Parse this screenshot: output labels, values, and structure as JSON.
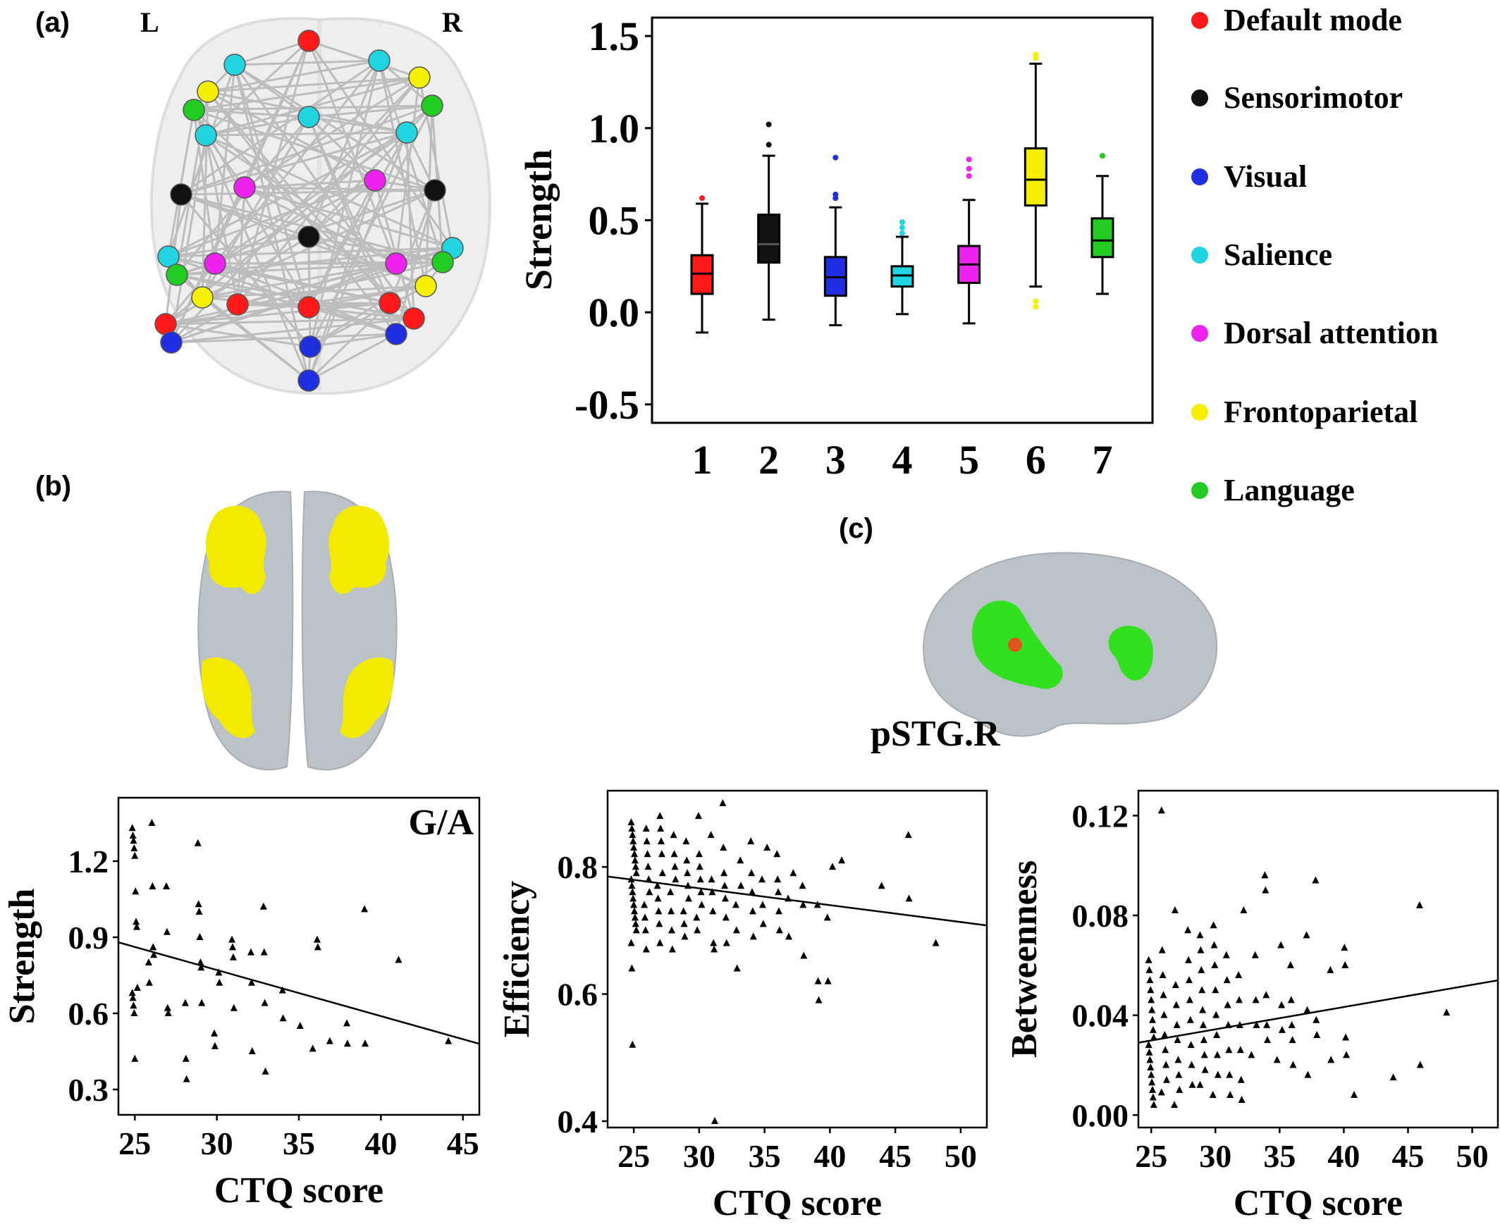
{
  "panels": {
    "a": "(a)",
    "b": "(b)",
    "c": "(c)"
  },
  "brain_a": {
    "left_label": "L",
    "right_label": "R"
  },
  "brain_c": {
    "label": "pSTG.R"
  },
  "colors": {
    "default_mode": "#ff1a1a",
    "sensorimotor": "#111111",
    "visual": "#1f2fe0",
    "salience": "#22d3e0",
    "dorsal_attention": "#ee22ee",
    "frontoparietal": "#f5f000",
    "language": "#22cc22",
    "activation_yellow": "#f2ea00",
    "activation_green": "#33e01f",
    "brain_gray": "#bcc3c8"
  },
  "legend": [
    {
      "label": "Default mode",
      "color": "#ff1a1a"
    },
    {
      "label": "Sensorimotor",
      "color": "#111111"
    },
    {
      "label": "Visual",
      "color": "#1f2fe0"
    },
    {
      "label": "Salience",
      "color": "#22d3e0"
    },
    {
      "label": "Dorsal attention",
      "color": "#ee22ee"
    },
    {
      "label": "Frontoparietal",
      "color": "#f5f000"
    },
    {
      "label": "Language",
      "color": "#22cc22"
    }
  ],
  "chart_data": [
    {
      "type": "box",
      "ylabel": "Strength",
      "categories": [
        "1",
        "2",
        "3",
        "4",
        "5",
        "6",
        "7"
      ],
      "ylim": [
        -0.6,
        1.6
      ],
      "yticks": [
        1.5,
        1.0,
        0.5,
        0.0,
        -0.5
      ],
      "ytick_labels": [
        "1.5",
        "1.0",
        "0.5",
        "0.0",
        "-0.5"
      ],
      "boxes": [
        {
          "category": "1",
          "color": "#ff1a1a",
          "min": -0.11,
          "q1": 0.1,
          "median": 0.21,
          "q3": 0.31,
          "max": 0.59,
          "outliers": [
            0.62
          ]
        },
        {
          "category": "2",
          "color": "#111111",
          "min": -0.04,
          "q1": 0.27,
          "median": 0.37,
          "q3": 0.53,
          "max": 0.85,
          "outliers": [
            0.91,
            1.02
          ]
        },
        {
          "category": "3",
          "color": "#1f2fe0",
          "min": -0.07,
          "q1": 0.09,
          "median": 0.19,
          "q3": 0.3,
          "max": 0.57,
          "outliers": [
            0.62,
            0.64,
            0.84
          ]
        },
        {
          "category": "4",
          "color": "#22d3e0",
          "min": -0.01,
          "q1": 0.14,
          "median": 0.2,
          "q3": 0.25,
          "max": 0.41,
          "outliers": [
            0.43,
            0.46,
            0.49
          ]
        },
        {
          "category": "5",
          "color": "#ee22ee",
          "min": -0.06,
          "q1": 0.16,
          "median": 0.26,
          "q3": 0.36,
          "max": 0.61,
          "outliers": [
            0.74,
            0.78,
            0.83
          ]
        },
        {
          "category": "6",
          "color": "#f5f000",
          "min": 0.14,
          "q1": 0.58,
          "median": 0.72,
          "q3": 0.89,
          "max": 1.35,
          "outliers": [
            0.03,
            0.06,
            1.38,
            1.4
          ]
        },
        {
          "category": "7",
          "color": "#22cc22",
          "min": 0.1,
          "q1": 0.3,
          "median": 0.39,
          "q3": 0.51,
          "max": 0.74,
          "outliers": [
            0.85
          ]
        }
      ]
    },
    {
      "type": "scatter",
      "annotation": "G/A",
      "xlabel": "CTQ score",
      "ylabel": "Strength",
      "xlim": [
        24,
        46
      ],
      "ylim": [
        0.2,
        1.45
      ],
      "xticks": [
        25,
        30,
        35,
        40,
        45
      ],
      "yticks": [
        0.3,
        0.6,
        0.9,
        1.2
      ],
      "ytick_labels": [
        "0.3",
        "0.6",
        "0.9",
        "1.2"
      ],
      "fit_line": {
        "x": [
          24,
          46
        ],
        "y": [
          0.88,
          0.48
        ]
      },
      "points": [
        [
          25,
          1.33
        ],
        [
          25,
          1.3
        ],
        [
          25,
          1.28
        ],
        [
          25,
          1.25
        ],
        [
          25,
          1.22
        ],
        [
          25,
          1.08
        ],
        [
          25,
          0.96
        ],
        [
          25,
          0.94
        ],
        [
          25,
          0.7
        ],
        [
          25,
          0.68
        ],
        [
          25,
          0.66
        ],
        [
          25,
          0.63
        ],
        [
          25,
          0.6
        ],
        [
          25,
          0.42
        ],
        [
          26,
          1.35
        ],
        [
          26,
          1.1
        ],
        [
          26,
          0.86
        ],
        [
          26,
          0.83
        ],
        [
          26,
          0.8
        ],
        [
          26,
          0.72
        ],
        [
          27,
          1.1
        ],
        [
          27,
          0.92
        ],
        [
          27,
          0.62
        ],
        [
          27,
          0.6
        ],
        [
          28,
          0.64
        ],
        [
          28,
          0.42
        ],
        [
          28,
          0.34
        ],
        [
          29,
          1.27
        ],
        [
          29,
          1.03
        ],
        [
          29,
          1.0
        ],
        [
          29,
          0.9
        ],
        [
          29,
          0.8
        ],
        [
          29,
          0.78
        ],
        [
          29,
          0.64
        ],
        [
          30,
          0.76
        ],
        [
          30,
          0.72
        ],
        [
          30,
          0.52
        ],
        [
          30,
          0.47
        ],
        [
          31,
          0.89
        ],
        [
          31,
          0.86
        ],
        [
          31,
          0.82
        ],
        [
          31,
          0.62
        ],
        [
          32,
          0.84
        ],
        [
          32,
          0.72
        ],
        [
          32,
          0.45
        ],
        [
          33,
          1.02
        ],
        [
          33,
          0.84
        ],
        [
          33,
          0.64
        ],
        [
          33,
          0.37
        ],
        [
          34,
          0.69
        ],
        [
          34,
          0.58
        ],
        [
          35,
          0.55
        ],
        [
          36,
          0.89
        ],
        [
          36,
          0.86
        ],
        [
          36,
          0.46
        ],
        [
          37,
          0.49
        ],
        [
          38,
          0.56
        ],
        [
          38,
          0.48
        ],
        [
          39,
          1.01
        ],
        [
          39,
          0.48
        ],
        [
          41,
          0.81
        ],
        [
          44,
          0.49
        ]
      ]
    },
    {
      "type": "scatter",
      "xlabel": "CTQ score",
      "ylabel": "Efficiency",
      "xlim": [
        23,
        52
      ],
      "ylim": [
        0.39,
        0.92
      ],
      "xticks": [
        25,
        30,
        35,
        40,
        45,
        50
      ],
      "yticks": [
        0.4,
        0.6,
        0.8
      ],
      "ytick_labels": [
        "0.4",
        "0.6",
        "0.8"
      ],
      "fit_line": {
        "x": [
          23,
          52
        ],
        "y": [
          0.785,
          0.708
        ]
      },
      "points": [
        [
          25,
          0.87
        ],
        [
          25,
          0.86
        ],
        [
          25,
          0.85
        ],
        [
          25,
          0.84
        ],
        [
          25,
          0.83
        ],
        [
          25,
          0.82
        ],
        [
          25,
          0.81
        ],
        [
          25,
          0.8
        ],
        [
          25,
          0.79
        ],
        [
          25,
          0.78
        ],
        [
          25,
          0.77
        ],
        [
          25,
          0.76
        ],
        [
          25,
          0.75
        ],
        [
          25,
          0.74
        ],
        [
          25,
          0.73
        ],
        [
          25,
          0.72
        ],
        [
          25,
          0.71
        ],
        [
          25,
          0.7
        ],
        [
          25,
          0.68
        ],
        [
          25,
          0.64
        ],
        [
          25,
          0.52
        ],
        [
          26,
          0.86
        ],
        [
          26,
          0.84
        ],
        [
          26,
          0.82
        ],
        [
          26,
          0.8
        ],
        [
          26,
          0.78
        ],
        [
          26,
          0.76
        ],
        [
          26,
          0.74
        ],
        [
          26,
          0.72
        ],
        [
          26,
          0.7
        ],
        [
          26,
          0.67
        ],
        [
          27,
          0.88
        ],
        [
          27,
          0.86
        ],
        [
          27,
          0.84
        ],
        [
          27,
          0.82
        ],
        [
          27,
          0.79
        ],
        [
          27,
          0.77
        ],
        [
          27,
          0.75
        ],
        [
          27,
          0.73
        ],
        [
          27,
          0.71
        ],
        [
          27,
          0.68
        ],
        [
          28,
          0.85
        ],
        [
          28,
          0.82
        ],
        [
          28,
          0.8
        ],
        [
          28,
          0.78
        ],
        [
          28,
          0.76
        ],
        [
          28,
          0.73
        ],
        [
          28,
          0.7
        ],
        [
          28,
          0.67
        ],
        [
          29,
          0.84
        ],
        [
          29,
          0.81
        ],
        [
          29,
          0.79
        ],
        [
          29,
          0.77
        ],
        [
          29,
          0.75
        ],
        [
          29,
          0.73
        ],
        [
          29,
          0.71
        ],
        [
          29,
          0.69
        ],
        [
          30,
          0.88
        ],
        [
          30,
          0.82
        ],
        [
          30,
          0.8
        ],
        [
          30,
          0.78
        ],
        [
          30,
          0.76
        ],
        [
          30,
          0.74
        ],
        [
          30,
          0.72
        ],
        [
          30,
          0.7
        ],
        [
          31,
          0.85
        ],
        [
          31,
          0.78
        ],
        [
          31,
          0.76
        ],
        [
          31,
          0.73
        ],
        [
          31,
          0.68
        ],
        [
          31,
          0.67
        ],
        [
          31,
          0.4
        ],
        [
          32,
          0.9
        ],
        [
          32,
          0.83
        ],
        [
          32,
          0.79
        ],
        [
          32,
          0.77
        ],
        [
          32,
          0.75
        ],
        [
          32,
          0.72
        ],
        [
          32,
          0.68
        ],
        [
          33,
          0.81
        ],
        [
          33,
          0.77
        ],
        [
          33,
          0.74
        ],
        [
          33,
          0.7
        ],
        [
          33,
          0.64
        ],
        [
          34,
          0.84
        ],
        [
          34,
          0.79
        ],
        [
          34,
          0.76
        ],
        [
          34,
          0.73
        ],
        [
          34,
          0.69
        ],
        [
          35,
          0.83
        ],
        [
          35,
          0.78
        ],
        [
          35,
          0.74
        ],
        [
          35,
          0.71
        ],
        [
          36,
          0.82
        ],
        [
          36,
          0.78
        ],
        [
          36,
          0.76
        ],
        [
          36,
          0.73
        ],
        [
          36,
          0.7
        ],
        [
          37,
          0.79
        ],
        [
          37,
          0.75
        ],
        [
          37,
          0.69
        ],
        [
          38,
          0.77
        ],
        [
          38,
          0.74
        ],
        [
          38,
          0.66
        ],
        [
          39,
          0.74
        ],
        [
          39,
          0.62
        ],
        [
          39,
          0.59
        ],
        [
          40,
          0.8
        ],
        [
          40,
          0.72
        ],
        [
          40,
          0.62
        ],
        [
          41,
          0.81
        ],
        [
          44,
          0.77
        ],
        [
          46,
          0.85
        ],
        [
          46,
          0.75
        ],
        [
          48,
          0.68
        ]
      ]
    },
    {
      "type": "scatter",
      "xlabel": "CTQ score",
      "ylabel": "Betweenness",
      "xlim": [
        24,
        52
      ],
      "ylim": [
        -0.005,
        0.13
      ],
      "xticks": [
        25,
        30,
        35,
        40,
        45,
        50
      ],
      "yticks": [
        0.0,
        0.04,
        0.08,
        0.12
      ],
      "ytick_labels": [
        "0.00",
        "0.04",
        "0.08",
        "0.12"
      ],
      "fit_line": {
        "x": [
          24,
          52
        ],
        "y": [
          0.029,
          0.054
        ]
      },
      "points": [
        [
          25,
          0.062
        ],
        [
          25,
          0.058
        ],
        [
          25,
          0.054
        ],
        [
          25,
          0.05
        ],
        [
          25,
          0.046
        ],
        [
          25,
          0.042
        ],
        [
          25,
          0.038
        ],
        [
          25,
          0.034
        ],
        [
          25,
          0.031
        ],
        [
          25,
          0.028
        ],
        [
          25,
          0.025
        ],
        [
          25,
          0.022
        ],
        [
          25,
          0.019
        ],
        [
          25,
          0.016
        ],
        [
          25,
          0.013
        ],
        [
          25,
          0.01
        ],
        [
          25,
          0.007
        ],
        [
          25,
          0.004
        ],
        [
          26,
          0.122
        ],
        [
          26,
          0.066
        ],
        [
          26,
          0.056
        ],
        [
          26,
          0.048
        ],
        [
          26,
          0.04
        ],
        [
          26,
          0.032
        ],
        [
          26,
          0.026
        ],
        [
          26,
          0.02
        ],
        [
          26,
          0.014
        ],
        [
          26,
          0.009
        ],
        [
          27,
          0.082
        ],
        [
          27,
          0.052
        ],
        [
          27,
          0.044
        ],
        [
          27,
          0.036
        ],
        [
          27,
          0.03
        ],
        [
          27,
          0.022
        ],
        [
          27,
          0.016
        ],
        [
          27,
          0.01
        ],
        [
          27,
          0.004
        ],
        [
          28,
          0.074
        ],
        [
          28,
          0.062
        ],
        [
          28,
          0.054
        ],
        [
          28,
          0.046
        ],
        [
          28,
          0.038
        ],
        [
          28,
          0.028
        ],
        [
          28,
          0.02
        ],
        [
          28,
          0.012
        ],
        [
          29,
          0.072
        ],
        [
          29,
          0.066
        ],
        [
          29,
          0.058
        ],
        [
          29,
          0.05
        ],
        [
          29,
          0.042
        ],
        [
          29,
          0.036
        ],
        [
          29,
          0.03
        ],
        [
          29,
          0.024
        ],
        [
          29,
          0.018
        ],
        [
          29,
          0.012
        ],
        [
          30,
          0.076
        ],
        [
          30,
          0.068
        ],
        [
          30,
          0.06
        ],
        [
          30,
          0.05
        ],
        [
          30,
          0.04
        ],
        [
          30,
          0.032
        ],
        [
          30,
          0.024
        ],
        [
          30,
          0.016
        ],
        [
          30,
          0.008
        ],
        [
          31,
          0.064
        ],
        [
          31,
          0.054
        ],
        [
          31,
          0.044
        ],
        [
          31,
          0.036
        ],
        [
          31,
          0.026
        ],
        [
          31,
          0.016
        ],
        [
          31,
          0.008
        ],
        [
          32,
          0.082
        ],
        [
          32,
          0.056
        ],
        [
          32,
          0.046
        ],
        [
          32,
          0.036
        ],
        [
          32,
          0.026
        ],
        [
          32,
          0.014
        ],
        [
          32,
          0.006
        ],
        [
          33,
          0.064
        ],
        [
          33,
          0.046
        ],
        [
          33,
          0.036
        ],
        [
          33,
          0.024
        ],
        [
          34,
          0.096
        ],
        [
          34,
          0.09
        ],
        [
          34,
          0.048
        ],
        [
          34,
          0.036
        ],
        [
          34,
          0.03
        ],
        [
          35,
          0.068
        ],
        [
          35,
          0.044
        ],
        [
          35,
          0.034
        ],
        [
          35,
          0.022
        ],
        [
          36,
          0.06
        ],
        [
          36,
          0.046
        ],
        [
          36,
          0.036
        ],
        [
          36,
          0.03
        ],
        [
          36,
          0.02
        ],
        [
          37,
          0.072
        ],
        [
          37,
          0.042
        ],
        [
          37,
          0.016
        ],
        [
          38,
          0.094
        ],
        [
          38,
          0.038
        ],
        [
          38,
          0.032
        ],
        [
          39,
          0.058
        ],
        [
          39,
          0.022
        ],
        [
          40,
          0.067
        ],
        [
          40,
          0.06
        ],
        [
          40,
          0.031
        ],
        [
          40,
          0.024
        ],
        [
          41,
          0.008
        ],
        [
          44,
          0.015
        ],
        [
          46,
          0.084
        ],
        [
          46,
          0.02
        ],
        [
          48,
          0.041
        ]
      ]
    }
  ]
}
